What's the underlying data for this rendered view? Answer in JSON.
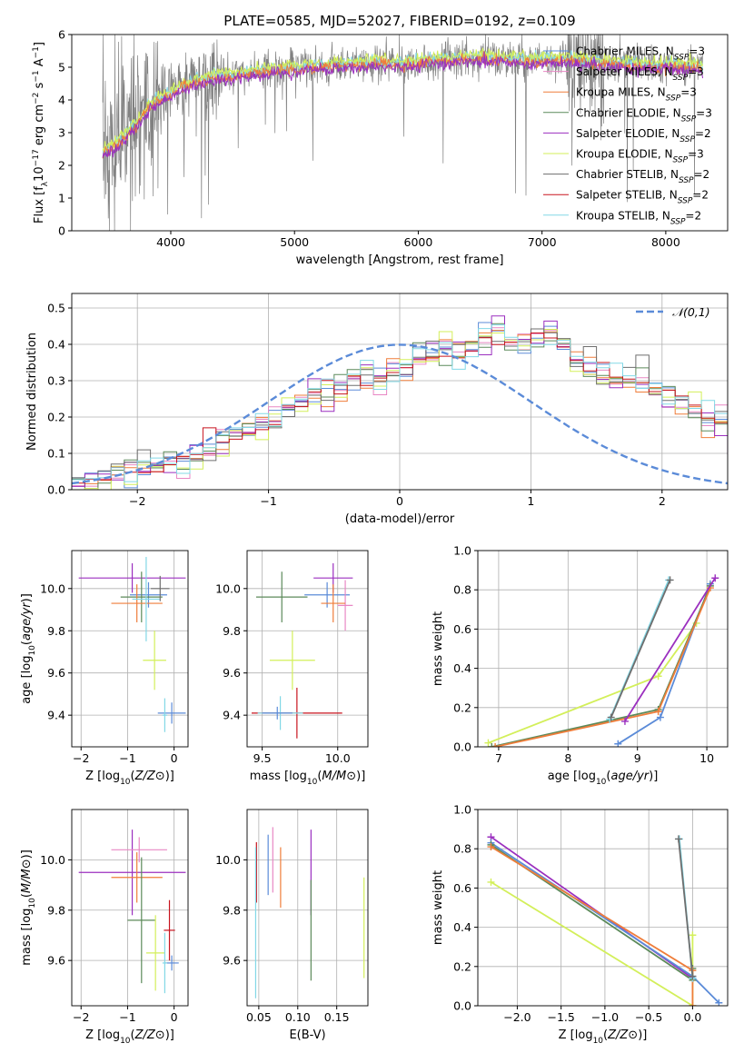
{
  "figure": {
    "title": "PLATE=0585, MJD=52027, FIBERID=0192, z=0.109"
  },
  "colors": {
    "Chabrier MILES": "#5b8bd8",
    "Salpeter MILES": "#e887c4",
    "Kroupa MILES": "#ef7d3a",
    "Chabrier ELODIE": "#5c8a5a",
    "Salpeter ELODIE": "#9b2fbf",
    "Kroupa ELODIE": "#d3ef5a",
    "Chabrier STELIB": "#6e6e6e",
    "Salpeter STELIB": "#c8141e",
    "Kroupa STELIB": "#82d8e6",
    "gaussian": "#5b8bd8",
    "grid": "#b0b0b0",
    "spectrum": "#808080"
  },
  "chart_data": [
    {
      "id": "spectrum",
      "type": "line",
      "xlabel": "wavelength [Angstrom, rest frame]",
      "ylabel": "Flux [f_λ 10^-17 erg cm^-2 s^-1 A^-1]",
      "xlim": [
        3200,
        8500
      ],
      "ylim": [
        0,
        6
      ],
      "xticks": [
        4000,
        5000,
        6000,
        7000,
        8000
      ],
      "yticks": [
        0,
        1,
        2,
        3,
        4,
        5,
        6
      ],
      "grid": false,
      "legend_position": "top-right",
      "legend": [
        {
          "name": "Chabrier MILES",
          "nssp": "3"
        },
        {
          "name": "Salpeter MILES",
          "nssp": "3"
        },
        {
          "name": "Kroupa MILES",
          "nssp": "3"
        },
        {
          "name": "Chabrier ELODIE",
          "nssp": "3"
        },
        {
          "name": "Salpeter ELODIE",
          "nssp": "2"
        },
        {
          "name": "Kroupa ELODIE",
          "nssp": "3"
        },
        {
          "name": "Chabrier STELIB",
          "nssp": "2"
        },
        {
          "name": "Salpeter STELIB",
          "nssp": "2"
        },
        {
          "name": "Kroupa STELIB",
          "nssp": "2"
        }
      ],
      "continuum_x": [
        3450,
        3550,
        3650,
        3750,
        3850,
        3950,
        4050,
        4150,
        4250,
        4350,
        4500,
        4700,
        4900,
        5100,
        5300,
        5500,
        5700,
        5900,
        6100,
        6300,
        6500,
        6700,
        6900,
        7100,
        7300,
        7500,
        7700,
        7900,
        8100,
        8300
      ],
      "continuum_y": [
        2.4,
        2.6,
        3.0,
        3.4,
        3.9,
        4.1,
        4.3,
        4.5,
        4.6,
        4.7,
        4.75,
        4.85,
        4.95,
        5.0,
        5.05,
        5.1,
        5.15,
        5.1,
        5.2,
        5.25,
        5.3,
        5.25,
        5.2,
        5.25,
        5.2,
        5.15,
        5.1,
        5.05,
        5.05,
        5.0
      ]
    },
    {
      "id": "residuals",
      "type": "histogram",
      "xlabel": "(data-model)/error",
      "ylabel": "Normed distribution",
      "xlim": [
        -2.5,
        2.5
      ],
      "ylim": [
        0,
        0.54
      ],
      "xticks": [
        -2,
        -1,
        0,
        1,
        2
      ],
      "yticks": [
        0.0,
        0.1,
        0.2,
        0.3,
        0.4,
        0.5
      ],
      "grid": true,
      "legend": [
        {
          "name": "𝒩(0,1)",
          "style": "dashed"
        }
      ],
      "bin_width": 0.1,
      "bin_start": -2.5,
      "base_values": [
        0.02,
        0.025,
        0.03,
        0.04,
        0.05,
        0.055,
        0.06,
        0.07,
        0.08,
        0.09,
        0.11,
        0.13,
        0.15,
        0.17,
        0.19,
        0.2,
        0.22,
        0.24,
        0.26,
        0.27,
        0.28,
        0.3,
        0.32,
        0.31,
        0.33,
        0.34,
        0.36,
        0.37,
        0.39,
        0.38,
        0.4,
        0.42,
        0.44,
        0.41,
        0.39,
        0.42,
        0.43,
        0.39,
        0.36,
        0.34,
        0.32,
        0.31,
        0.3,
        0.29,
        0.27,
        0.26,
        0.24,
        0.22,
        0.2,
        0.18,
        0.17,
        0.16,
        0.14,
        0.12,
        0.1,
        0.09,
        0.08,
        0.07,
        0.05,
        0.04,
        0.035,
        0.03,
        0.03,
        0.025,
        0.02
      ],
      "gaussian": {
        "mu": 0,
        "sigma": 1
      }
    },
    {
      "id": "age_vs_Z",
      "type": "errorbar",
      "xlabel": "Z [log10(Z/Z⊙)]",
      "ylabel": "age  [log10(age/yr)]",
      "xlim": [
        -2.2,
        0.3
      ],
      "ylim": [
        9.25,
        10.18
      ],
      "xticks": [
        -2,
        -1,
        0
      ],
      "yticks": [
        9.4,
        9.6,
        9.8,
        10.0
      ],
      "points": [
        {
          "s": "Salpeter ELODIE",
          "x": -0.9,
          "xerr": 1.15,
          "y": 10.05,
          "yerr": 0.07
        },
        {
          "s": "Chabrier MILES",
          "x": -0.55,
          "xerr": 0.4,
          "y": 9.97,
          "yerr": 0.06
        },
        {
          "s": "Chabrier ELODIE",
          "x": -0.7,
          "xerr": 0.45,
          "y": 9.96,
          "yerr": 0.12
        },
        {
          "s": "Kroupa MILES",
          "x": -0.8,
          "xerr": 0.55,
          "y": 9.93,
          "yerr": 0.09
        },
        {
          "s": "Kroupa STELIB",
          "x": -0.6,
          "xerr": 0.3,
          "y": 9.95,
          "yerr": 0.2
        },
        {
          "s": "Kroupa ELODIE",
          "x": -0.42,
          "xerr": 0.25,
          "y": 9.66,
          "yerr": 0.14
        },
        {
          "s": "Chabrier STELIB",
          "x": -0.3,
          "xerr": 0.2,
          "y": 10.0,
          "yerr": 0.06
        },
        {
          "s": "Chabrier MILES",
          "x": -0.05,
          "xerr": 0.3,
          "y": 9.41,
          "yerr": 0.05
        },
        {
          "s": "Kroupa STELIB",
          "x": -0.2,
          "xerr": 0.05,
          "y": 9.4,
          "yerr": 0.08
        }
      ]
    },
    {
      "id": "age_vs_mass",
      "type": "errorbar",
      "xlabel": "mass [log10(M/M⊙)]",
      "ylabel": "",
      "xlim": [
        9.4,
        10.2
      ],
      "ylim": [
        9.25,
        10.18
      ],
      "xticks": [
        9.5,
        10.0
      ],
      "yticks": [
        9.4,
        9.6,
        9.8,
        10.0
      ],
      "points": [
        {
          "s": "Salpeter ELODIE",
          "x": 9.97,
          "xerr": 0.13,
          "y": 10.05,
          "yerr": 0.07
        },
        {
          "s": "Chabrier MILES",
          "x": 9.93,
          "xerr": 0.15,
          "y": 9.97,
          "yerr": 0.06
        },
        {
          "s": "Chabrier ELODIE",
          "x": 9.63,
          "xerr": 0.17,
          "y": 9.96,
          "yerr": 0.12
        },
        {
          "s": "Salpeter MILES",
          "x": 10.05,
          "xerr": 0.05,
          "y": 9.92,
          "yerr": 0.12
        },
        {
          "s": "Kroupa MILES",
          "x": 9.97,
          "xerr": 0.08,
          "y": 9.93,
          "yerr": 0.09
        },
        {
          "s": "Kroupa ELODIE",
          "x": 9.7,
          "xerr": 0.15,
          "y": 9.66,
          "yerr": 0.14
        },
        {
          "s": "Salpeter STELIB",
          "x": 9.73,
          "xerr": 0.3,
          "y": 9.41,
          "yerr": 0.12
        },
        {
          "s": "Kroupa STELIB",
          "x": 9.62,
          "xerr": 0.15,
          "y": 9.41,
          "yerr": 0.08
        },
        {
          "s": "Chabrier MILES",
          "x": 9.6,
          "xerr": 0.1,
          "y": 9.41,
          "yerr": 0.03
        }
      ]
    },
    {
      "id": "weight_vs_age",
      "type": "line",
      "xlabel": "age  [log10(age/yr)]",
      "ylabel": "mass weight",
      "xlim": [
        6.7,
        10.3
      ],
      "ylim": [
        0,
        1.0
      ],
      "xticks": [
        7,
        8,
        9,
        10
      ],
      "yticks": [
        0.0,
        0.2,
        0.4,
        0.6,
        0.8,
        1.0
      ],
      "grid": true,
      "series": [
        {
          "s": "Kroupa ELODIE",
          "x": [
            6.85,
            9.3,
            9.85
          ],
          "y": [
            0.02,
            0.36,
            0.63
          ]
        },
        {
          "s": "Chabrier MILES",
          "x": [
            8.72,
            9.33,
            10.05
          ],
          "y": [
            0.015,
            0.15,
            0.83
          ]
        },
        {
          "s": "Chabrier ELODIE",
          "x": [
            6.9,
            9.3,
            10.05
          ],
          "y": [
            0.0,
            0.19,
            0.82
          ]
        },
        {
          "s": "Kroupa MILES",
          "x": [
            6.95,
            9.3,
            10.05
          ],
          "y": [
            0.0,
            0.18,
            0.81
          ]
        },
        {
          "s": "Salpeter ELODIE",
          "x": [
            8.82,
            10.12
          ],
          "y": [
            0.13,
            0.86
          ]
        },
        {
          "s": "Kroupa STELIB",
          "x": [
            8.6,
            9.45
          ],
          "y": [
            0.14,
            0.85
          ]
        },
        {
          "s": "Chabrier STELIB",
          "x": [
            8.62,
            9.47
          ],
          "y": [
            0.15,
            0.85
          ]
        }
      ]
    },
    {
      "id": "mass_vs_Z",
      "type": "errorbar",
      "xlabel": "Z [log10(Z/Z⊙)]",
      "ylabel": "mass [log10(M/M⊙)]",
      "xlim": [
        -2.2,
        0.3
      ],
      "ylim": [
        9.42,
        10.2
      ],
      "xticks": [
        -2,
        -1,
        0
      ],
      "yticks": [
        9.6,
        9.8,
        10.0
      ],
      "points": [
        {
          "s": "Salpeter ELODIE",
          "x": -0.9,
          "xerr": 1.15,
          "y": 9.95,
          "yerr": 0.17
        },
        {
          "s": "Salpeter MILES",
          "x": -0.75,
          "xerr": 0.6,
          "y": 10.04,
          "yerr": 0.05
        },
        {
          "s": "Kroupa MILES",
          "x": -0.8,
          "xerr": 0.55,
          "y": 9.93,
          "yerr": 0.1
        },
        {
          "s": "Chabrier ELODIE",
          "x": -0.7,
          "xerr": 0.3,
          "y": 9.76,
          "yerr": 0.25
        },
        {
          "s": "Kroupa ELODIE",
          "x": -0.4,
          "xerr": 0.2,
          "y": 9.63,
          "yerr": 0.15
        },
        {
          "s": "Salpeter STELIB",
          "x": -0.1,
          "xerr": 0.12,
          "y": 9.72,
          "yerr": 0.12
        },
        {
          "s": "Chabrier MILES",
          "x": -0.05,
          "xerr": 0.15,
          "y": 9.59,
          "yerr": 0.03
        },
        {
          "s": "Kroupa STELIB",
          "x": -0.2,
          "xerr": 0.05,
          "y": 9.59,
          "yerr": 0.12
        }
      ]
    },
    {
      "id": "mass_vs_EBV",
      "type": "errorbar",
      "xlabel": "E(B-V)",
      "ylabel": "",
      "xlim": [
        0.035,
        0.19
      ],
      "ylim": [
        9.42,
        10.2
      ],
      "xticks": [
        0.05,
        0.1,
        0.15
      ],
      "yticks": [
        9.6,
        9.8,
        10.0
      ],
      "points": [
        {
          "s": "Salpeter STELIB",
          "x": 0.047,
          "y": 9.95,
          "yerr": 0.12
        },
        {
          "s": "Kroupa STELIB",
          "x": 0.046,
          "y": 9.75,
          "yerr": 0.3
        },
        {
          "s": "Chabrier MILES",
          "x": 0.062,
          "y": 9.98,
          "yerr": 0.12
        },
        {
          "s": "Salpeter MILES",
          "x": 0.068,
          "y": 10.0,
          "yerr": 0.13
        },
        {
          "s": "Kroupa MILES",
          "x": 0.078,
          "y": 9.93,
          "yerr": 0.12
        },
        {
          "s": "Salpeter ELODIE",
          "x": 0.117,
          "y": 9.95,
          "yerr": 0.17
        },
        {
          "s": "Chabrier ELODIE",
          "x": 0.117,
          "y": 9.72,
          "yerr": 0.2
        },
        {
          "s": "Kroupa ELODIE",
          "x": 0.185,
          "y": 9.73,
          "yerr": 0.2
        }
      ]
    },
    {
      "id": "weight_vs_Z",
      "type": "line",
      "xlabel": "Z [log10(Z/Z⊙)]",
      "ylabel": "mass weight",
      "xlim": [
        -2.45,
        0.4
      ],
      "ylim": [
        0,
        1.0
      ],
      "xticks": [
        -2.0,
        -1.5,
        -1.0,
        -0.5,
        0.0
      ],
      "yticks": [
        0.0,
        0.2,
        0.4,
        0.6,
        0.8,
        1.0
      ],
      "grid": true,
      "series": [
        {
          "s": "Kroupa ELODIE",
          "x": [
            -2.3,
            0.0,
            0.0
          ],
          "y": [
            0.63,
            0.0,
            0.36
          ]
        },
        {
          "s": "Salpeter ELODIE",
          "x": [
            -2.3,
            0.0
          ],
          "y": [
            0.86,
            0.14
          ]
        },
        {
          "s": "Chabrier MILES",
          "x": [
            -2.3,
            0.0,
            0.3
          ],
          "y": [
            0.83,
            0.15,
            0.015
          ]
        },
        {
          "s": "Chabrier ELODIE",
          "x": [
            -2.3,
            0.0,
            0.0
          ],
          "y": [
            0.82,
            0.13,
            0.19
          ]
        },
        {
          "s": "Kroupa MILES",
          "x": [
            -2.3,
            0.0,
            0.0
          ],
          "y": [
            0.81,
            0.18,
            0.0
          ]
        },
        {
          "s": "Kroupa STELIB",
          "x": [
            -0.15,
            0.0
          ],
          "y": [
            0.85,
            0.14
          ]
        },
        {
          "s": "Chabrier STELIB",
          "x": [
            -0.16,
            0.0
          ],
          "y": [
            0.85,
            0.15
          ]
        }
      ]
    }
  ]
}
